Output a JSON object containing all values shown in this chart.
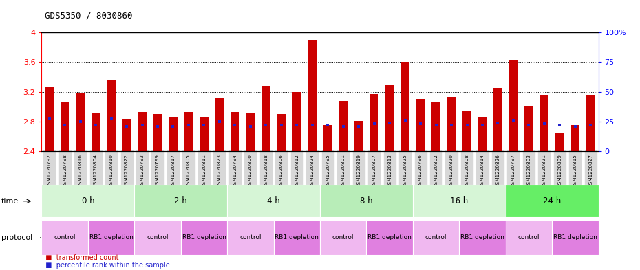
{
  "title": "GDS5350 / 8030860",
  "samples": [
    "GSM1220792",
    "GSM1220798",
    "GSM1220816",
    "GSM1220804",
    "GSM1220810",
    "GSM1220822",
    "GSM1220793",
    "GSM1220799",
    "GSM1220817",
    "GSM1220805",
    "GSM1220811",
    "GSM1220823",
    "GSM1220794",
    "GSM1220800",
    "GSM1220818",
    "GSM1220806",
    "GSM1220812",
    "GSM1220824",
    "GSM1220795",
    "GSM1220801",
    "GSM1220819",
    "GSM1220807",
    "GSM1220813",
    "GSM1220825",
    "GSM1220796",
    "GSM1220802",
    "GSM1220820",
    "GSM1220808",
    "GSM1220814",
    "GSM1220826",
    "GSM1220797",
    "GSM1220803",
    "GSM1220821",
    "GSM1220809",
    "GSM1220815",
    "GSM1220827"
  ],
  "red_values": [
    3.27,
    3.07,
    3.18,
    2.92,
    3.35,
    2.84,
    2.93,
    2.9,
    2.85,
    2.93,
    2.85,
    3.12,
    2.93,
    2.91,
    3.28,
    2.9,
    3.2,
    3.9,
    2.75,
    3.08,
    2.81,
    3.17,
    3.3,
    3.6,
    3.1,
    3.07,
    3.13,
    2.95,
    2.86,
    3.25,
    3.62,
    3.0,
    3.15,
    2.65,
    2.75,
    3.15
  ],
  "blue_values": [
    27,
    22,
    25,
    22,
    27,
    21,
    22,
    21,
    21,
    22,
    22,
    25,
    22,
    21,
    22,
    22,
    22,
    22,
    22,
    21,
    21,
    23,
    24,
    26,
    23,
    22,
    22,
    22,
    22,
    24,
    26,
    22,
    23,
    22,
    21,
    22
  ],
  "ylim_left": [
    2.4,
    4.0
  ],
  "ylim_right": [
    0,
    100
  ],
  "yticks_left": [
    2.4,
    2.8,
    3.2,
    3.6,
    4.0
  ],
  "ytick_labels_left": [
    "2.4",
    "2.8",
    "3.2",
    "3.6",
    "4"
  ],
  "yticks_right": [
    0,
    25,
    50,
    75,
    100
  ],
  "ytick_labels_right": [
    "0",
    "25",
    "50",
    "75",
    "100%"
  ],
  "dotted_lines": [
    2.8,
    3.2,
    3.6
  ],
  "time_groups": [
    {
      "label": "0 h",
      "start": 0,
      "end": 6,
      "color": "#d6f5d6"
    },
    {
      "label": "2 h",
      "start": 6,
      "end": 12,
      "color": "#b8edb8"
    },
    {
      "label": "4 h",
      "start": 12,
      "end": 18,
      "color": "#d6f5d6"
    },
    {
      "label": "8 h",
      "start": 18,
      "end": 24,
      "color": "#b8edb8"
    },
    {
      "label": "16 h",
      "start": 24,
      "end": 30,
      "color": "#d6f5d6"
    },
    {
      "label": "24 h",
      "start": 30,
      "end": 36,
      "color": "#66ee66"
    }
  ],
  "protocol_groups": [
    {
      "label": "control",
      "start": 0,
      "end": 3,
      "color": "#f0b8f0"
    },
    {
      "label": "RB1 depletion",
      "start": 3,
      "end": 6,
      "color": "#e080e0"
    },
    {
      "label": "control",
      "start": 6,
      "end": 9,
      "color": "#f0b8f0"
    },
    {
      "label": "RB1 depletion",
      "start": 9,
      "end": 12,
      "color": "#e080e0"
    },
    {
      "label": "control",
      "start": 12,
      "end": 15,
      "color": "#f0b8f0"
    },
    {
      "label": "RB1 depletion",
      "start": 15,
      "end": 18,
      "color": "#e080e0"
    },
    {
      "label": "control",
      "start": 18,
      "end": 21,
      "color": "#f0b8f0"
    },
    {
      "label": "RB1 depletion",
      "start": 21,
      "end": 24,
      "color": "#e080e0"
    },
    {
      "label": "control",
      "start": 24,
      "end": 27,
      "color": "#f0b8f0"
    },
    {
      "label": "RB1 depletion",
      "start": 27,
      "end": 30,
      "color": "#e080e0"
    },
    {
      "label": "control",
      "start": 30,
      "end": 33,
      "color": "#f0b8f0"
    },
    {
      "label": "RB1 depletion",
      "start": 33,
      "end": 36,
      "color": "#e080e0"
    }
  ],
  "bar_color": "#cc0000",
  "dot_color": "#2222cc",
  "background_color": "#ffffff",
  "bar_width": 0.55,
  "base_value": 2.4,
  "xtick_bg": "#d8d8d8"
}
